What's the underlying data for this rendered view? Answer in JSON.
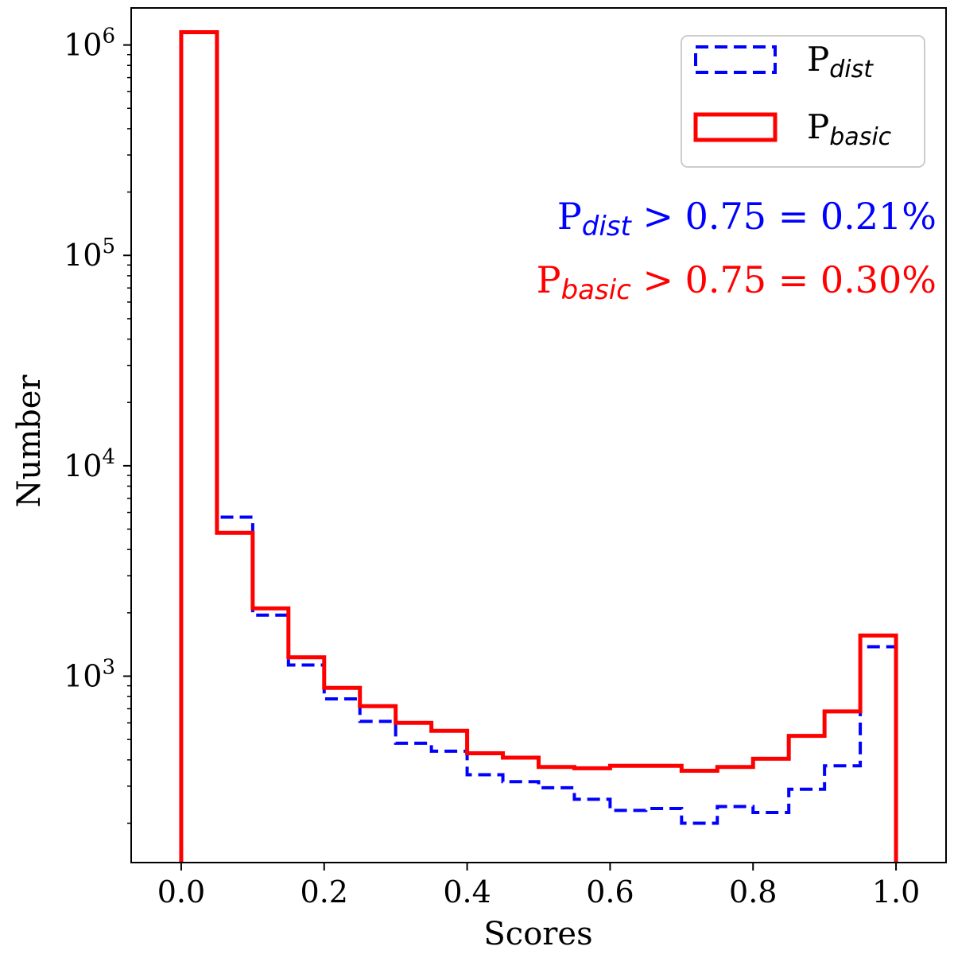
{
  "chart_data": {
    "type": "step-histogram",
    "xlabel": "Scores",
    "ylabel": "Number",
    "xlim": [
      -0.07,
      1.07
    ],
    "ylim": [
      130,
      1500000
    ],
    "yscale": "log",
    "xticks": [
      0.0,
      0.2,
      0.4,
      0.6,
      0.8,
      1.0
    ],
    "xtick_labels": [
      "0.0",
      "0.2",
      "0.4",
      "0.6",
      "0.8",
      "1.0"
    ],
    "yticks": [
      {
        "value": 1000,
        "base": "10",
        "exp": "3"
      },
      {
        "value": 10000,
        "base": "10",
        "exp": "4"
      },
      {
        "value": 100000,
        "base": "10",
        "exp": "5"
      },
      {
        "value": 1000000,
        "base": "10",
        "exp": "6"
      }
    ],
    "bin_edges": [
      0.0,
      0.05,
      0.1,
      0.15,
      0.2,
      0.25,
      0.3,
      0.35,
      0.4,
      0.45,
      0.5,
      0.55,
      0.6,
      0.65,
      0.7,
      0.75,
      0.8,
      0.85,
      0.9,
      0.95,
      1.0
    ],
    "series": [
      {
        "name": "P_dist",
        "label_main": "P",
        "label_sub": "dist",
        "color": "#0000ff",
        "style": "dashed",
        "values": [
          1150000,
          5700,
          1950,
          1130,
          780,
          610,
          480,
          440,
          340,
          315,
          295,
          260,
          230,
          235,
          200,
          240,
          225,
          290,
          375,
          1380
        ]
      },
      {
        "name": "P_basic",
        "label_main": "P",
        "label_sub": "basic",
        "color": "#ff0000",
        "style": "solid",
        "values": [
          1150000,
          4800,
          2100,
          1230,
          880,
          720,
          600,
          550,
          430,
          410,
          370,
          365,
          375,
          375,
          355,
          370,
          405,
          520,
          680,
          1560
        ]
      }
    ],
    "legend_position": "upper right",
    "annotations": [
      {
        "main": "P",
        "sub": "dist",
        "text": " > 0.75 = 0.21%",
        "color": "#0000ff"
      },
      {
        "main": "P",
        "sub": "basic",
        "text": " > 0.75 = 0.30%",
        "color": "#ff0000"
      }
    ]
  }
}
